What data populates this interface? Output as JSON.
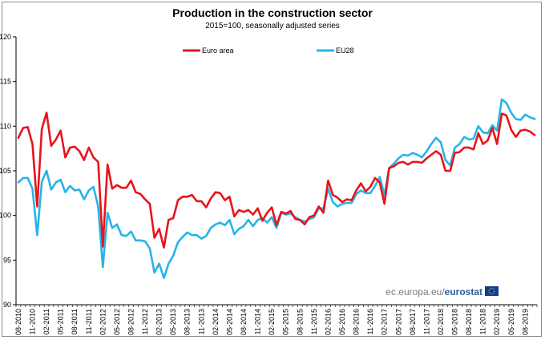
{
  "chart_data": {
    "type": "line",
    "title": "Production in the construction sector",
    "subtitle": "2015=100, seasonally adjusted series",
    "xlabel": "",
    "ylabel": "",
    "ylim": [
      90,
      120
    ],
    "yticks": [
      90,
      95,
      100,
      105,
      110,
      115,
      120
    ],
    "grid": "none",
    "legend_position": "top",
    "x_tick_labels": [
      "08-2010",
      "11-2010",
      "02-2011",
      "05-2011",
      "08-2011",
      "11-2011",
      "02-2012",
      "05-2012",
      "08-2012",
      "11-2012",
      "02-2013",
      "05-2013",
      "08-2013",
      "11-2013",
      "02-2014",
      "05-2014",
      "08-2014",
      "11-2014",
      "02-2015",
      "05-2015",
      "08-2015",
      "11-2015",
      "02-2016",
      "05-2016",
      "08-2016",
      "11-2016",
      "02-2017",
      "05-2017",
      "08-2017",
      "11-2017",
      "02-2018",
      "05-2018",
      "08-2018",
      "11-2018",
      "02-2019",
      "05-2019",
      "08-2019"
    ],
    "series": [
      {
        "name": "Euro area",
        "color": "#e8141b",
        "values": [
          108.7,
          109.8,
          109.9,
          108.0,
          101.0,
          109.7,
          111.5,
          107.8,
          108.5,
          109.5,
          106.5,
          107.6,
          107.7,
          107.2,
          106.2,
          107.6,
          106.5,
          106.0,
          96.5,
          105.7,
          103.0,
          103.4,
          103.1,
          103.1,
          103.9,
          102.6,
          102.4,
          101.8,
          101.3,
          97.5,
          98.5,
          96.4,
          99.5,
          99.7,
          101.7,
          102.1,
          102.1,
          102.3,
          101.6,
          101.6,
          100.9,
          101.9,
          102.6,
          102.5,
          101.7,
          102.1,
          99.9,
          100.6,
          100.4,
          100.6,
          100.1,
          100.8,
          99.4,
          100.3,
          100.9,
          98.9,
          100.4,
          100.2,
          100.5,
          99.6,
          99.5,
          99.0,
          99.8,
          100.0,
          101.0,
          100.3,
          103.9,
          102.3,
          102.0,
          101.5,
          101.8,
          101.7,
          102.8,
          103.6,
          102.7,
          103.2,
          104.2,
          103.7,
          101.3,
          105.3,
          105.5,
          105.9,
          106.0,
          105.7,
          106.0,
          106.0,
          105.9,
          106.4,
          106.8,
          107.2,
          106.8,
          105.0,
          105.0,
          107.0,
          107.1,
          107.6,
          107.6,
          107.4,
          109.2,
          108.0,
          108.4,
          109.8,
          108.0,
          111.4,
          111.2,
          109.6,
          108.8,
          109.5,
          109.6,
          109.4,
          109.0
        ]
      },
      {
        "name": "EU28",
        "color": "#26b4ea",
        "values": [
          103.7,
          104.2,
          104.2,
          103.0,
          97.8,
          103.8,
          105.0,
          102.9,
          103.7,
          104.0,
          102.6,
          103.3,
          102.8,
          102.9,
          101.8,
          102.8,
          103.2,
          101.0,
          94.2,
          100.3,
          98.6,
          99.0,
          97.8,
          97.7,
          98.2,
          97.2,
          97.2,
          97.1,
          96.3,
          93.6,
          94.6,
          93.0,
          94.6,
          95.5,
          97.0,
          97.6,
          98.1,
          97.8,
          97.8,
          97.4,
          97.7,
          98.6,
          99.0,
          99.2,
          98.9,
          99.5,
          97.9,
          98.5,
          98.8,
          99.5,
          98.8,
          99.5,
          99.7,
          99.2,
          99.8,
          98.6,
          100.3,
          100.1,
          100.2,
          99.8,
          99.5,
          99.3,
          99.6,
          99.8,
          100.8,
          100.8,
          103.0,
          101.5,
          101.0,
          101.3,
          101.4,
          101.4,
          102.4,
          102.8,
          102.5,
          102.5,
          103.3,
          104.3,
          102.3,
          105.3,
          105.8,
          106.4,
          106.8,
          106.7,
          107.0,
          106.8,
          106.5,
          107.2,
          108.0,
          108.7,
          108.2,
          106.2,
          105.6,
          107.6,
          108.0,
          108.8,
          108.5,
          108.6,
          110.0,
          109.3,
          109.2,
          110.1,
          109.5,
          113.0,
          112.6,
          111.5,
          110.8,
          110.7,
          111.3,
          111.0,
          110.8
        ]
      }
    ]
  },
  "source": {
    "prefix": "ec.europa.eu/",
    "brand": "eurostat"
  }
}
